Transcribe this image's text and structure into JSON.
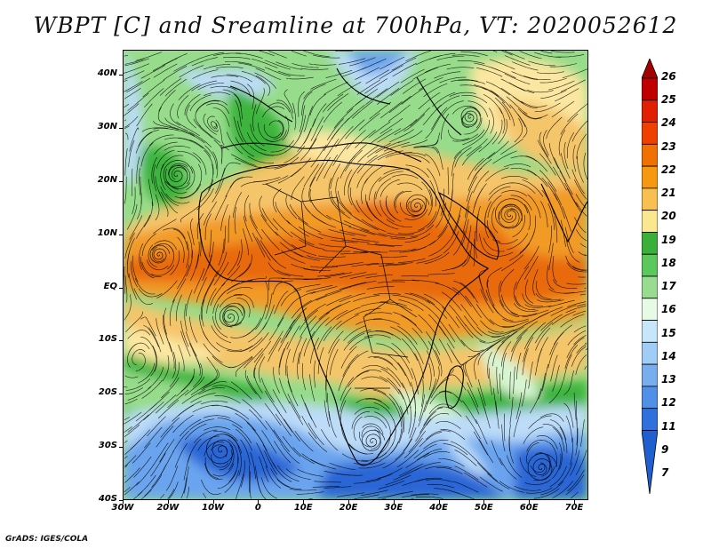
{
  "title": "WBPT [C] and Sreamline at 700hPa, VT: 2020052612",
  "credit": "GrADS: IGES/COLA",
  "map": {
    "lat_labels": [
      "40N",
      "30N",
      "20N",
      "10N",
      "EQ",
      "10S",
      "20S",
      "30S",
      "40S"
    ],
    "lon_labels": [
      "30W",
      "20W",
      "10W",
      "0",
      "10E",
      "20E",
      "30E",
      "40E",
      "50E",
      "60E",
      "70E"
    ]
  },
  "colorbar": {
    "labels": [
      "26",
      "25",
      "24",
      "23",
      "22",
      "21",
      "20",
      "19",
      "18",
      "17",
      "16",
      "15",
      "14",
      "13",
      "12",
      "11",
      "9",
      "7"
    ],
    "colors": [
      "#a40000",
      "#c00000",
      "#e02000",
      "#f04000",
      "#f07000",
      "#f59a10",
      "#f8c050",
      "#fae890",
      "#3ab03a",
      "#5cc85c",
      "#98dc90",
      "#e6fae6",
      "#c8e6fa",
      "#a0cdf5",
      "#78aeee",
      "#5090e6",
      "#3070dc",
      "#1f5fcf"
    ]
  },
  "palette": {
    "deep_blue": "#2a66d6",
    "mid_blue": "#6aa4ee",
    "light_blue": "#bcdcf8",
    "pale_green": "#d8f5d2",
    "light_green": "#96dc8a",
    "green": "#3cb43c",
    "pale_yellow": "#fbe7a0",
    "tan": "#f5c56a",
    "orange": "#f29a28",
    "dark_orange": "#e86a10"
  }
}
